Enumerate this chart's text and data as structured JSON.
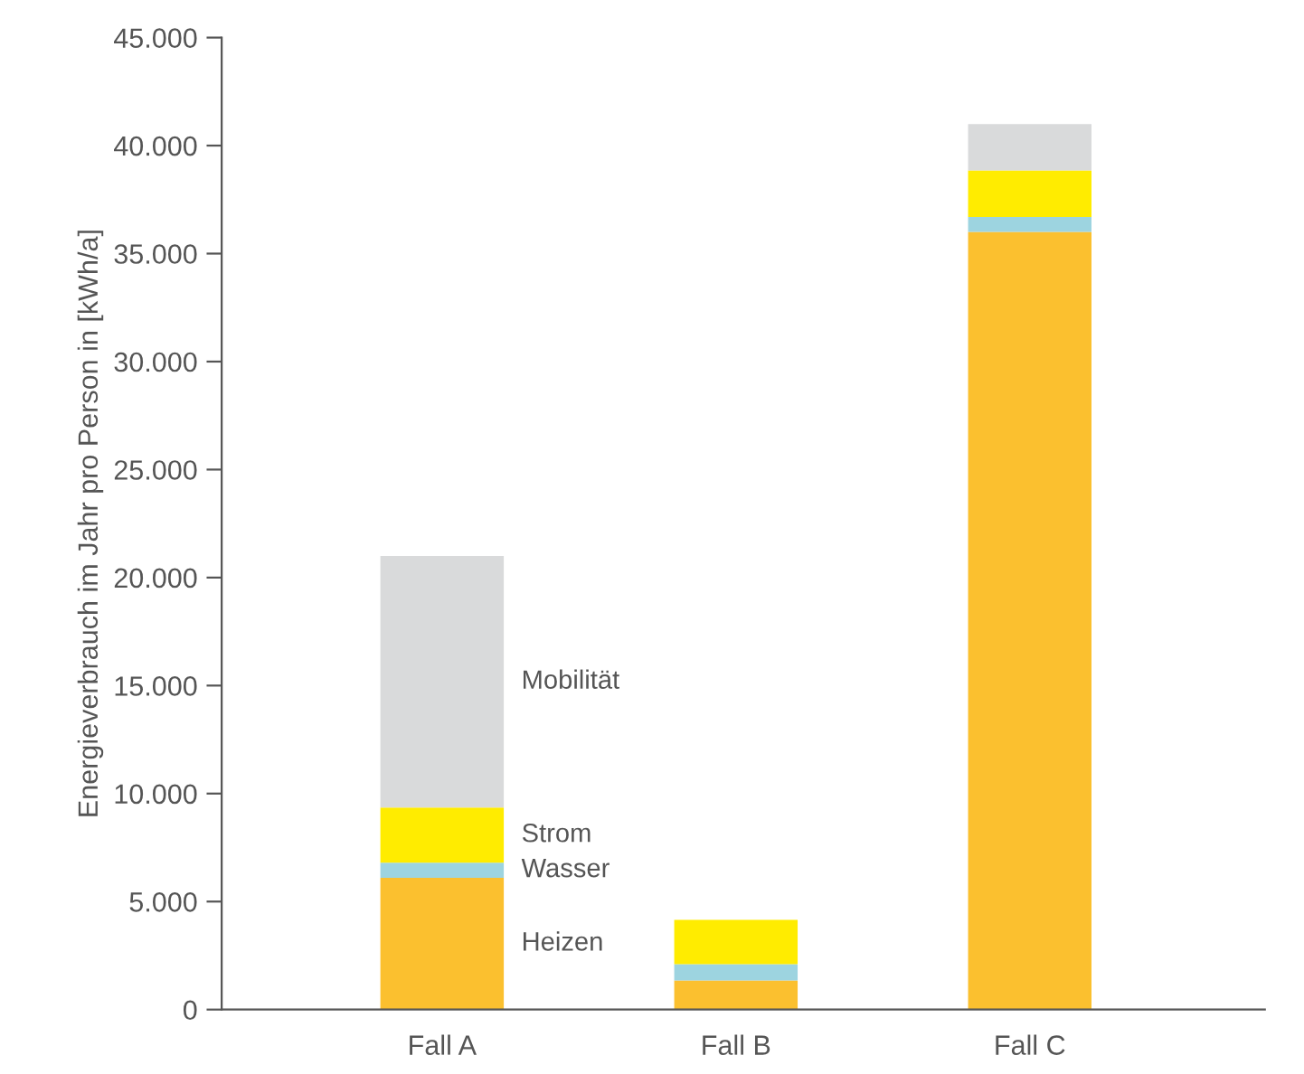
{
  "chart_data": {
    "type": "bar",
    "stacked": true,
    "ylabel": "Energieverbrauch im Jahr pro Person in [kWh/a]",
    "categories": [
      "Fall A",
      "Fall B",
      "Fall C"
    ],
    "series": [
      {
        "name": "Heizen",
        "color": "#fbc02f",
        "values": [
          6100,
          1350,
          36000
        ]
      },
      {
        "name": "Wasser",
        "color": "#9dd4e0",
        "values": [
          700,
          750,
          700
        ]
      },
      {
        "name": "Strom",
        "color": "#ffec00",
        "values": [
          2550,
          2050,
          2150
        ]
      },
      {
        "name": "Mobilität",
        "color": "#d9dadb",
        "values": [
          11650,
          0,
          2150
        ]
      }
    ],
    "ylim": [
      0,
      45000
    ],
    "yticks": [
      0,
      {
        "value": 5000,
        "label": "5.000"
      },
      {
        "value": 10000,
        "label": "10.000"
      },
      {
        "value": 15000,
        "label": "15.000"
      },
      {
        "value": 20000,
        "label": "20.000"
      },
      {
        "value": 25000,
        "label": "25.000"
      },
      {
        "value": 30000,
        "label": "30.000"
      },
      {
        "value": 35000,
        "label": "35.000"
      },
      {
        "value": 40000,
        "label": "40.000"
      },
      {
        "value": 45000,
        "label": "45.000"
      }
    ],
    "grid": false,
    "legend": false
  }
}
